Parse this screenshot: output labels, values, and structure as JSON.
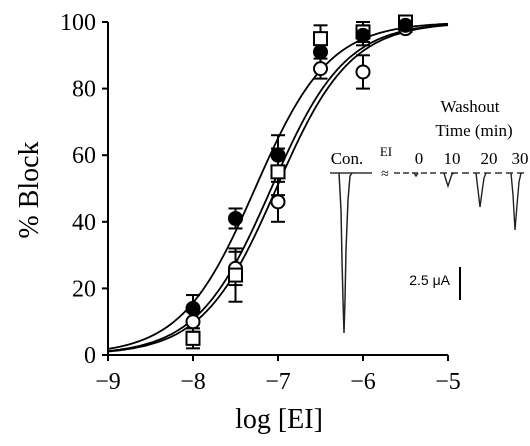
{
  "chart_data": {
    "type": "scatter",
    "xlabel": "log [EI]",
    "ylabel": "% Block",
    "xlim": [
      -9,
      -5
    ],
    "ylim": [
      0,
      100
    ],
    "x_ticks": [
      "−9",
      "−8",
      "−7",
      "−6",
      "−5"
    ],
    "y_ticks": [
      "0",
      "20",
      "40",
      "60",
      "80",
      "100"
    ],
    "grid": false,
    "series": [
      {
        "marker": "filled-circle",
        "x": [
          -8.0,
          -7.5,
          -7.0,
          -6.5,
          -6.0,
          -5.5
        ],
        "y": [
          14,
          41,
          60,
          91,
          96,
          99
        ],
        "err": [
          4,
          3,
          6,
          5,
          3,
          1
        ],
        "fit": {
          "ic50_log": -7.27,
          "hill": 1.0
        }
      },
      {
        "marker": "open-square",
        "x": [
          -8.0,
          -7.5,
          -7.0,
          -6.5,
          -6.0,
          -5.5
        ],
        "y": [
          5,
          24,
          55,
          95,
          97,
          100
        ],
        "err": [
          3,
          8,
          7,
          4,
          3,
          1
        ],
        "fit": {
          "ic50_log": -7.08,
          "hill": 1.0
        }
      },
      {
        "marker": "open-circle",
        "x": [
          -8.0,
          -7.5,
          -7.0,
          -6.5,
          -6.0,
          -5.5
        ],
        "y": [
          10,
          26,
          46,
          86,
          85,
          98
        ],
        "err": [
          3,
          5,
          6,
          3,
          5,
          1
        ],
        "fit": {
          "ic50_log": -7.02,
          "hill": 1.0
        }
      }
    ],
    "inset": {
      "title_line1": "Washout",
      "title_line2": "Time (min)",
      "labels": [
        "Con.",
        "EI",
        "0",
        "10",
        "20",
        "30"
      ],
      "traces": [
        {
          "name": "Con.",
          "depth": 100
        },
        {
          "name": "0",
          "depth": 2
        },
        {
          "name": "10",
          "depth": 12
        },
        {
          "name": "20",
          "depth": 25
        },
        {
          "name": "30",
          "depth": 33
        }
      ],
      "scale_bar": "2.5 μA"
    }
  }
}
